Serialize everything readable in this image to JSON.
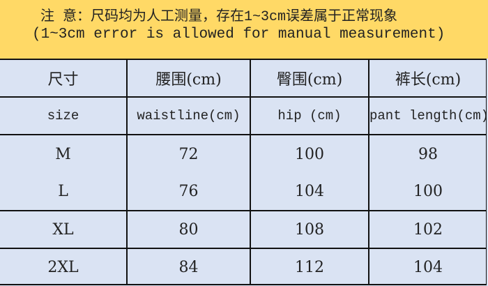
{
  "notice": {
    "line1": "注  意：尺码均为人工测量，存在1~3cm误差属于正常现象",
    "line2": "(1~3cm error is allowed for manual measurement)"
  },
  "table": {
    "header_zh": [
      "尺寸",
      "腰围(cm)",
      "臀围(cm)",
      "裤长(cm)"
    ],
    "header_en": [
      "size",
      "waistline(cm)",
      "hip (cm)",
      "pant length(cm)"
    ],
    "rows": [
      [
        "M",
        "72",
        "100",
        "98"
      ],
      [
        "L",
        "76",
        "104",
        "100"
      ],
      [
        "XL",
        "80",
        "108",
        "102"
      ],
      [
        "2XL",
        "84",
        "112",
        "104"
      ]
    ]
  },
  "colors": {
    "notice_bg": "#ffd966",
    "table_bg": "#dae3f3"
  }
}
